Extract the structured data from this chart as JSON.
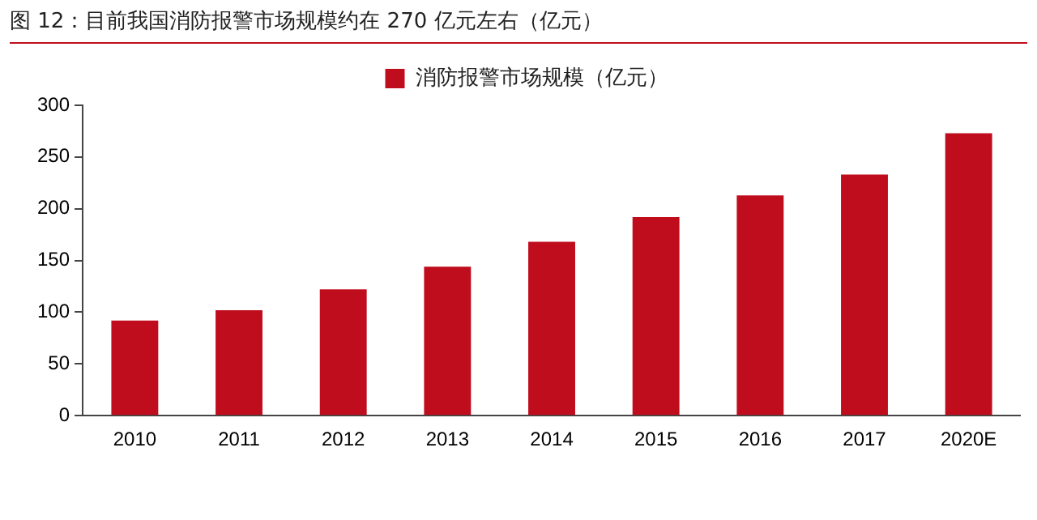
{
  "chart_data": {
    "type": "bar",
    "title": "图 12：目前我国消防报警市场规模约在 270 亿元左右（亿元）",
    "categories": [
      "2010",
      "2011",
      "2012",
      "2013",
      "2014",
      "2015",
      "2016",
      "2017",
      "2020E"
    ],
    "series": [
      {
        "name": "消防报警市场规模（亿元）",
        "color": "#c00d1e",
        "values": [
          92,
          102,
          122,
          144,
          168,
          192,
          213,
          233,
          273
        ]
      }
    ],
    "ylim": [
      0,
      300
    ],
    "yticks": [
      0,
      50,
      100,
      150,
      200,
      250,
      300
    ],
    "grid": false,
    "legend": "top"
  }
}
